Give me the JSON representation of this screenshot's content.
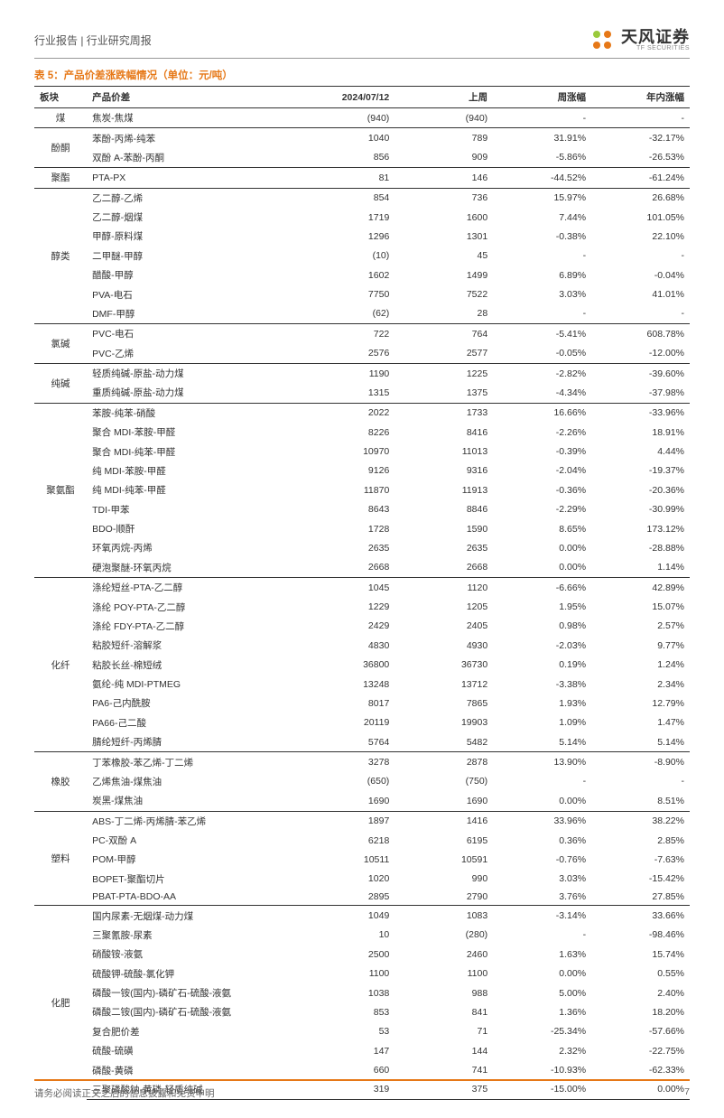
{
  "header": {
    "breadcrumb": "行业报告 | 行业研究周报"
  },
  "logo": {
    "cn": "天风证券",
    "en": "TF SECURITIES"
  },
  "table": {
    "title": "表 5：产品价差涨跌幅情况（单位：元/吨）",
    "headers": [
      "板块",
      "产品价差",
      "2024/07/12",
      "上周",
      "周涨幅",
      "年内涨幅"
    ],
    "groups": [
      {
        "cat": "煤",
        "rows": [
          {
            "name": "焦炭-焦煤",
            "v1": "(940)",
            "v2": "(940)",
            "v3": "-",
            "v4": "-"
          }
        ]
      },
      {
        "cat": "酚酮",
        "rows": [
          {
            "name": "苯酚-丙烯-纯苯",
            "v1": "1040",
            "v2": "789",
            "v3": "31.91%",
            "v4": "-32.17%"
          },
          {
            "name": "双酚 A-苯酚-丙酮",
            "v1": "856",
            "v2": "909",
            "v3": "-5.86%",
            "v4": "-26.53%"
          }
        ]
      },
      {
        "cat": "聚酯",
        "rows": [
          {
            "name": "PTA-PX",
            "v1": "81",
            "v2": "146",
            "v3": "-44.52%",
            "v4": "-61.24%"
          }
        ]
      },
      {
        "cat": "醇类",
        "rows": [
          {
            "name": "乙二醇-乙烯",
            "v1": "854",
            "v2": "736",
            "v3": "15.97%",
            "v4": "26.68%"
          },
          {
            "name": "乙二醇-烟煤",
            "v1": "1719",
            "v2": "1600",
            "v3": "7.44%",
            "v4": "101.05%"
          },
          {
            "name": "甲醇-原料煤",
            "v1": "1296",
            "v2": "1301",
            "v3": "-0.38%",
            "v4": "22.10%"
          },
          {
            "name": "二甲醚-甲醇",
            "v1": "(10)",
            "v2": "45",
            "v3": "-",
            "v4": "-"
          },
          {
            "name": "醋酸-甲醇",
            "v1": "1602",
            "v2": "1499",
            "v3": "6.89%",
            "v4": "-0.04%"
          },
          {
            "name": "PVA-电石",
            "v1": "7750",
            "v2": "7522",
            "v3": "3.03%",
            "v4": "41.01%"
          },
          {
            "name": "DMF-甲醇",
            "v1": "(62)",
            "v2": "28",
            "v3": "-",
            "v4": "-"
          }
        ]
      },
      {
        "cat": "氯碱",
        "rows": [
          {
            "name": "PVC-电石",
            "v1": "722",
            "v2": "764",
            "v3": "-5.41%",
            "v4": "608.78%"
          },
          {
            "name": "PVC-乙烯",
            "v1": "2576",
            "v2": "2577",
            "v3": "-0.05%",
            "v4": "-12.00%"
          }
        ]
      },
      {
        "cat": "纯碱",
        "rows": [
          {
            "name": "轻质纯碱-原盐-动力煤",
            "v1": "1190",
            "v2": "1225",
            "v3": "-2.82%",
            "v4": "-39.60%"
          },
          {
            "name": "重质纯碱-原盐-动力煤",
            "v1": "1315",
            "v2": "1375",
            "v3": "-4.34%",
            "v4": "-37.98%"
          }
        ]
      },
      {
        "cat": "聚氨酯",
        "rows": [
          {
            "name": "苯胺-纯苯-硝酸",
            "v1": "2022",
            "v2": "1733",
            "v3": "16.66%",
            "v4": "-33.96%"
          },
          {
            "name": "聚合 MDI-苯胺-甲醛",
            "v1": "8226",
            "v2": "8416",
            "v3": "-2.26%",
            "v4": "18.91%"
          },
          {
            "name": "聚合 MDI-纯苯-甲醛",
            "v1": "10970",
            "v2": "11013",
            "v3": "-0.39%",
            "v4": "4.44%"
          },
          {
            "name": "纯 MDI-苯胺-甲醛",
            "v1": "9126",
            "v2": "9316",
            "v3": "-2.04%",
            "v4": "-19.37%"
          },
          {
            "name": "纯 MDI-纯苯-甲醛",
            "v1": "11870",
            "v2": "11913",
            "v3": "-0.36%",
            "v4": "-20.36%"
          },
          {
            "name": "TDI-甲苯",
            "v1": "8643",
            "v2": "8846",
            "v3": "-2.29%",
            "v4": "-30.99%"
          },
          {
            "name": "BDO-顺酐",
            "v1": "1728",
            "v2": "1590",
            "v3": "8.65%",
            "v4": "173.12%"
          },
          {
            "name": "环氧丙烷-丙烯",
            "v1": "2635",
            "v2": "2635",
            "v3": "0.00%",
            "v4": "-28.88%"
          },
          {
            "name": "硬泡聚醚-环氧丙烷",
            "v1": "2668",
            "v2": "2668",
            "v3": "0.00%",
            "v4": "1.14%"
          }
        ]
      },
      {
        "cat": "化纤",
        "rows": [
          {
            "name": "涤纶短丝-PTA-乙二醇",
            "v1": "1045",
            "v2": "1120",
            "v3": "-6.66%",
            "v4": "42.89%"
          },
          {
            "name": "涤纶 POY-PTA-乙二醇",
            "v1": "1229",
            "v2": "1205",
            "v3": "1.95%",
            "v4": "15.07%"
          },
          {
            "name": "涤纶 FDY-PTA-乙二醇",
            "v1": "2429",
            "v2": "2405",
            "v3": "0.98%",
            "v4": "2.57%"
          },
          {
            "name": "粘胶短纤-溶解浆",
            "v1": "4830",
            "v2": "4930",
            "v3": "-2.03%",
            "v4": "9.77%"
          },
          {
            "name": "粘胶长丝-棉短绒",
            "v1": "36800",
            "v2": "36730",
            "v3": "0.19%",
            "v4": "1.24%"
          },
          {
            "name": "氨纶-纯 MDI-PTMEG",
            "v1": "13248",
            "v2": "13712",
            "v3": "-3.38%",
            "v4": "2.34%"
          },
          {
            "name": "PA6-己内酰胺",
            "v1": "8017",
            "v2": "7865",
            "v3": "1.93%",
            "v4": "12.79%"
          },
          {
            "name": "PA66-己二酸",
            "v1": "20119",
            "v2": "19903",
            "v3": "1.09%",
            "v4": "1.47%"
          },
          {
            "name": "腈纶短纤-丙烯腈",
            "v1": "5764",
            "v2": "5482",
            "v3": "5.14%",
            "v4": "5.14%"
          }
        ]
      },
      {
        "cat": "橡胶",
        "rows": [
          {
            "name": "丁苯橡胶-苯乙烯-丁二烯",
            "v1": "3278",
            "v2": "2878",
            "v3": "13.90%",
            "v4": "-8.90%"
          },
          {
            "name": "乙烯焦油-煤焦油",
            "v1": "(650)",
            "v2": "(750)",
            "v3": "-",
            "v4": "-"
          },
          {
            "name": "炭黑-煤焦油",
            "v1": "1690",
            "v2": "1690",
            "v3": "0.00%",
            "v4": "8.51%"
          }
        ]
      },
      {
        "cat": "塑料",
        "rows": [
          {
            "name": "ABS-丁二烯-丙烯腈-苯乙烯",
            "v1": "1897",
            "v2": "1416",
            "v3": "33.96%",
            "v4": "38.22%"
          },
          {
            "name": "PC-双酚 A",
            "v1": "6218",
            "v2": "6195",
            "v3": "0.36%",
            "v4": "2.85%"
          },
          {
            "name": "POM-甲醇",
            "v1": "10511",
            "v2": "10591",
            "v3": "-0.76%",
            "v4": "-7.63%"
          },
          {
            "name": "BOPET-聚酯切片",
            "v1": "1020",
            "v2": "990",
            "v3": "3.03%",
            "v4": "-15.42%"
          },
          {
            "name": "PBAT-PTA-BDO-AA",
            "v1": "2895",
            "v2": "2790",
            "v3": "3.76%",
            "v4": "27.85%"
          }
        ]
      },
      {
        "cat": "化肥",
        "rows": [
          {
            "name": "国内尿素-无烟煤-动力煤",
            "v1": "1049",
            "v2": "1083",
            "v3": "-3.14%",
            "v4": "33.66%"
          },
          {
            "name": "三聚氰胺-尿素",
            "v1": "10",
            "v2": "(280)",
            "v3": "-",
            "v4": "-98.46%"
          },
          {
            "name": "硝酸铵-液氨",
            "v1": "2500",
            "v2": "2460",
            "v3": "1.63%",
            "v4": "15.74%"
          },
          {
            "name": "硫酸钾-硫酸-氯化钾",
            "v1": "1100",
            "v2": "1100",
            "v3": "0.00%",
            "v4": "0.55%"
          },
          {
            "name": "磷酸一铵(国内)-磷矿石-硫酸-液氨",
            "v1": "1038",
            "v2": "988",
            "v3": "5.00%",
            "v4": "2.40%"
          },
          {
            "name": "磷酸二铵(国内)-磷矿石-硫酸-液氨",
            "v1": "853",
            "v2": "841",
            "v3": "1.36%",
            "v4": "18.20%"
          },
          {
            "name": "复合肥价差",
            "v1": "53",
            "v2": "71",
            "v3": "-25.34%",
            "v4": "-57.66%"
          },
          {
            "name": "硫酸-硫磺",
            "v1": "147",
            "v2": "144",
            "v3": "2.32%",
            "v4": "-22.75%"
          },
          {
            "name": "磷酸-黄磷",
            "v1": "660",
            "v2": "741",
            "v3": "-10.93%",
            "v4": "-62.33%"
          },
          {
            "name": "三聚磷酸钠-黄磷-轻质纯碱",
            "v1": "319",
            "v2": "375",
            "v3": "-15.00%",
            "v4": "0.00%"
          }
        ]
      }
    ]
  },
  "footer": {
    "disclaimer": "请务必阅读正文之后的信息披露和免责申明",
    "page": "7"
  },
  "colors": {
    "accent": "#e67817",
    "text": "#333333",
    "border": "#333333"
  }
}
